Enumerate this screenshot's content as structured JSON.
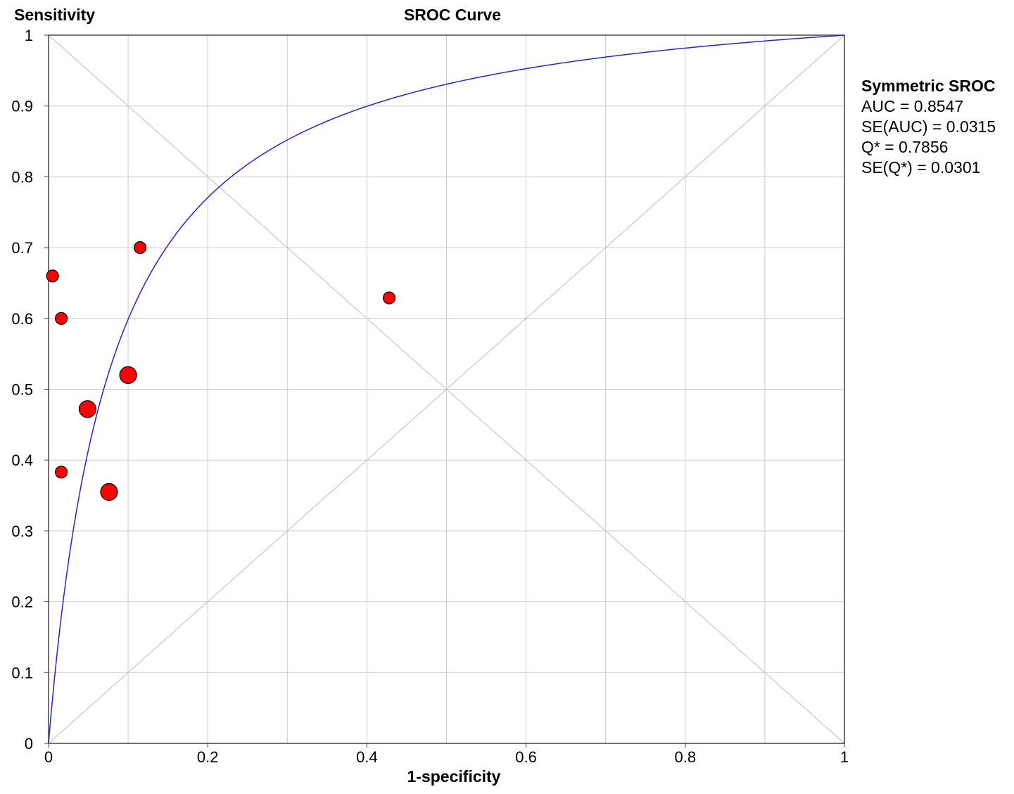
{
  "chart_data": {
    "type": "scatter",
    "title": "SROC Curve",
    "xlabel": "1-specificity",
    "ylabel": "Sensitivity",
    "xlim": [
      0,
      1
    ],
    "ylim": [
      0,
      1
    ],
    "x_ticks": [
      "0",
      "0.2",
      "0.4",
      "0.6",
      "0.8",
      "1"
    ],
    "y_ticks": [
      "0",
      "0.1",
      "0.2",
      "0.3",
      "0.4",
      "0.5",
      "0.6",
      "0.7",
      "0.8",
      "0.9",
      "1"
    ],
    "grid": true,
    "legend_position": "right",
    "points": [
      {
        "x": 0.005,
        "y": 0.66,
        "size": "small"
      },
      {
        "x": 0.016,
        "y": 0.6,
        "size": "small"
      },
      {
        "x": 0.016,
        "y": 0.383,
        "size": "small"
      },
      {
        "x": 0.049,
        "y": 0.472,
        "size": "large"
      },
      {
        "x": 0.076,
        "y": 0.355,
        "size": "large"
      },
      {
        "x": 0.1,
        "y": 0.52,
        "size": "large"
      },
      {
        "x": 0.115,
        "y": 0.7,
        "size": "small"
      },
      {
        "x": 0.428,
        "y": 0.629,
        "size": "small"
      }
    ],
    "curve": {
      "name": "Symmetric SROC",
      "auc": 0.8547
    },
    "colors": {
      "curve": "#2323d6",
      "points": "#ff0000",
      "grid": "#cccccc",
      "diagonals": "#c8c8c8"
    }
  },
  "legend": {
    "title": "Symmetric SROC",
    "lines": [
      "AUC = 0.8547",
      "SE(AUC) = 0.0315",
      "Q* = 0.7856",
      "SE(Q*) = 0.0301"
    ]
  }
}
